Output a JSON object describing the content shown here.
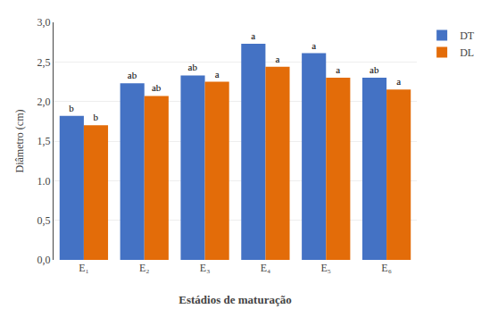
{
  "chart_data": {
    "type": "bar",
    "categories": [
      "E₁",
      "E₂",
      "E₃",
      "E₄",
      "E₅",
      "E₆"
    ],
    "series": [
      {
        "name": "DT",
        "color": "#4472C4",
        "values": [
          1.82,
          2.23,
          2.33,
          2.73,
          2.61,
          2.3
        ],
        "annotations": [
          "b",
          "ab",
          "ab",
          "a",
          "a",
          "ab"
        ]
      },
      {
        "name": "DL",
        "color": "#E36C09",
        "values": [
          1.7,
          2.07,
          2.25,
          2.44,
          2.3,
          2.15
        ],
        "annotations": [
          "b",
          "ab",
          "a",
          "a",
          "a",
          "a"
        ]
      }
    ],
    "ylabel": "Diâmetro (cm)",
    "xlabel": "Estádios de maturação",
    "ylim": [
      0,
      3.0
    ],
    "yticks": [
      {
        "value": 0.0,
        "label": "0,0"
      },
      {
        "value": 0.5,
        "label": "0,5"
      },
      {
        "value": 1.0,
        "label": "1.0"
      },
      {
        "value": 1.5,
        "label": "1,5"
      },
      {
        "value": 2.0,
        "label": "2,0"
      },
      {
        "value": 2.5,
        "label": "2,5"
      },
      {
        "value": 3.0,
        "label": "3,0"
      }
    ],
    "grid": true,
    "legend": "upper right"
  }
}
